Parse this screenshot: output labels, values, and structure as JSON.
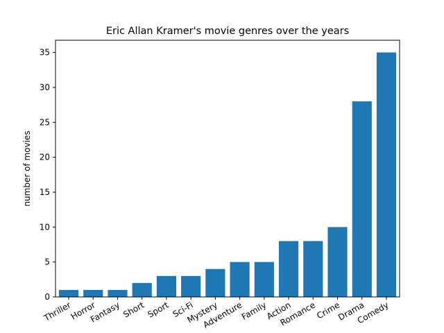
{
  "chart_data": {
    "type": "bar",
    "title": "Eric Allan Kramer's movie genres over the years",
    "xlabel": "",
    "ylabel": "number of movies",
    "categories": [
      "Thriller",
      "Horror",
      "Fantasy",
      "Short",
      "Sport",
      "Sci-Fi",
      "Mystery",
      "Adventure",
      "Family",
      "Action",
      "Romance",
      "Crime",
      "Drama",
      "Comedy"
    ],
    "values": [
      1,
      1,
      1,
      2,
      3,
      3,
      4,
      5,
      5,
      8,
      8,
      10,
      28,
      35
    ],
    "ylim": [
      0,
      36.75
    ],
    "yticks": [
      0,
      5,
      10,
      15,
      20,
      25,
      30,
      35
    ],
    "bar_color": "#1f77b4",
    "grid": false,
    "legend": "none",
    "xtick_rotation_deg": 30
  }
}
